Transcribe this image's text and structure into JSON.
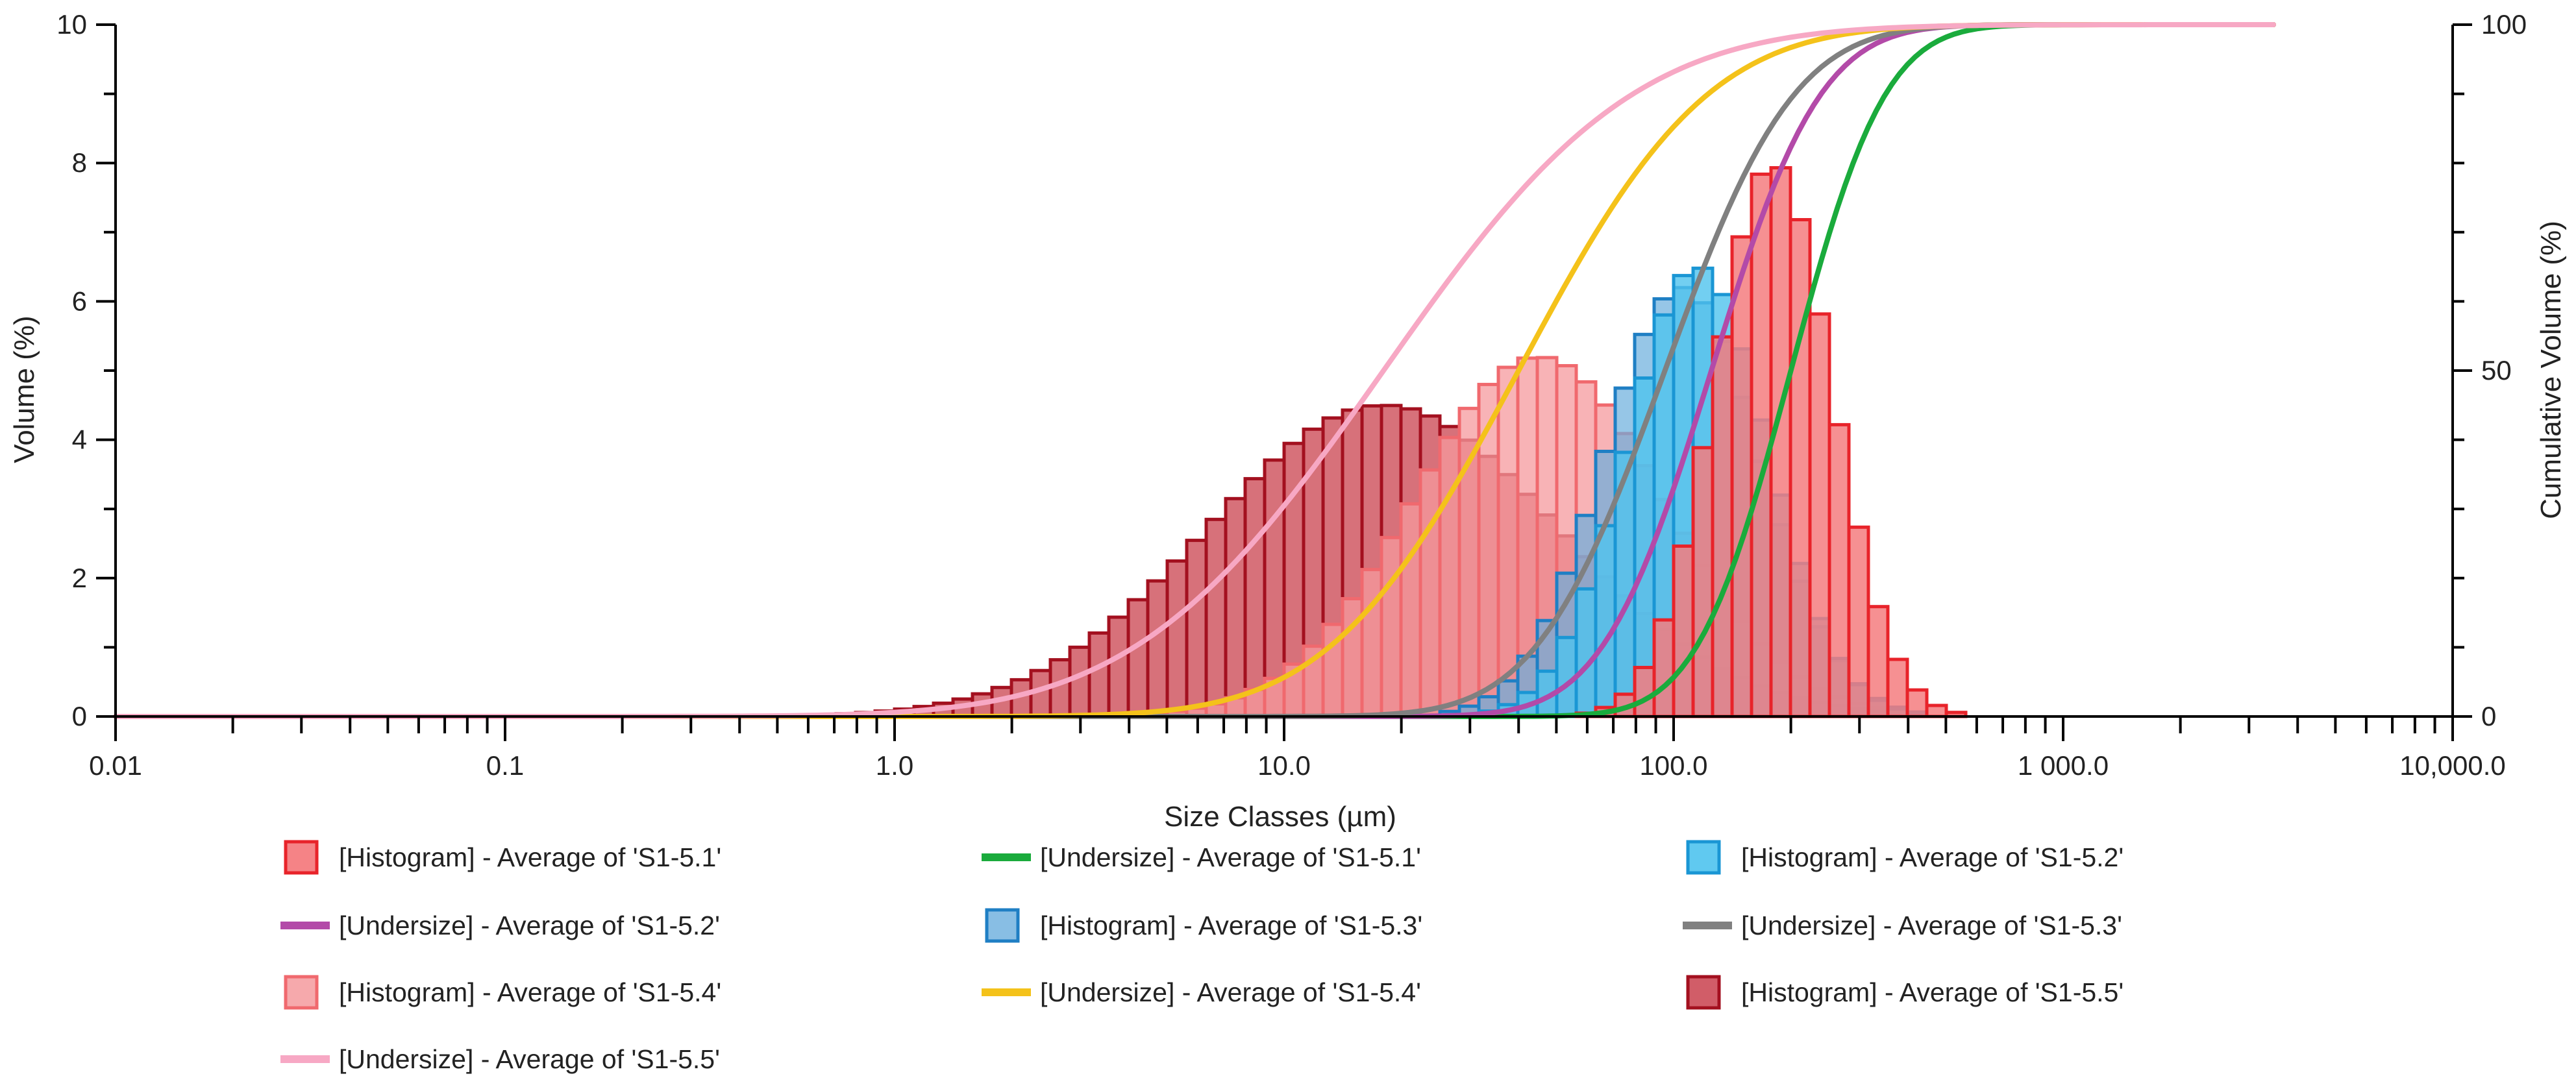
{
  "chart_data": {
    "type": "bar",
    "xlabel": "Size Classes (µm)",
    "ylabel": "Volume (%)",
    "y2label": "Cumulative Volume (%)",
    "xscale": "log",
    "xlim": [
      0.01,
      10000
    ],
    "ylim": [
      0,
      10
    ],
    "y2lim": [
      0,
      100
    ],
    "x_tick_labels": [
      "0.01",
      "0.1",
      "1.0",
      "10.0",
      "100.0",
      "1 000.0",
      "10,000.0"
    ],
    "x_tick_values": [
      0.01,
      0.1,
      1,
      10,
      100,
      1000,
      10000
    ],
    "y_tick_labels": [
      "0",
      "2",
      "4",
      "6",
      "8",
      "10"
    ],
    "y_tick_values": [
      0,
      2,
      4,
      6,
      8,
      10
    ],
    "y2_tick_labels": [
      "0",
      "50",
      "100"
    ],
    "y2_tick_values": [
      0,
      50,
      100
    ],
    "legend_position": "bottom",
    "series": [
      {
        "name": "[Histogram] - Average of 'S1-5.1'",
        "kind": "histogram",
        "color": "#e8232a",
        "fill": "#f47c7f",
        "fill_opacity": 0.85,
        "median_um": 180,
        "peak": 8.0,
        "width_decades": 0.15
      },
      {
        "name": "[Undersize] - Average of 'S1-5.1'",
        "kind": "undersize",
        "color": "#1aab3c"
      },
      {
        "name": "[Histogram] - Average of 'S1-5.2'",
        "kind": "histogram",
        "color": "#1a96d4",
        "fill": "#4fc3ee",
        "fill_opacity": 0.8,
        "median_um": 115,
        "peak": 6.5,
        "width_decades": 0.18
      },
      {
        "name": "[Undersize] - Average of 'S1-5.2'",
        "kind": "undersize",
        "color": "#b34aa8"
      },
      {
        "name": "[Histogram] - Average of 'S1-5.3'",
        "kind": "histogram",
        "color": "#1f7fc4",
        "fill": "#6aaedd",
        "fill_opacity": 0.7,
        "median_um": 105,
        "peak": 6.2,
        "width_decades": 0.2
      },
      {
        "name": "[Undersize] - Average of 'S1-5.3'",
        "kind": "undersize",
        "color": "#808080"
      },
      {
        "name": "[Histogram] - Average of 'S1-5.4'",
        "kind": "histogram",
        "color": "#f0696e",
        "fill": "#f59a9d",
        "fill_opacity": 0.75,
        "median_um": 45,
        "peak": 5.2,
        "width_decades": 0.32
      },
      {
        "name": "[Undersize] - Average of 'S1-5.4'",
        "kind": "undersize",
        "color": "#f4c21a"
      },
      {
        "name": "[Histogram] - Average of 'S1-5.5'",
        "kind": "histogram",
        "color": "#a3101f",
        "fill": "#c9414e",
        "fill_opacity": 0.75,
        "median_um": 18,
        "peak": 4.5,
        "width_decades": 0.45
      },
      {
        "name": "[Undersize] - Average of 'S1-5.5'",
        "kind": "undersize",
        "color": "#f7a8c4"
      }
    ]
  }
}
